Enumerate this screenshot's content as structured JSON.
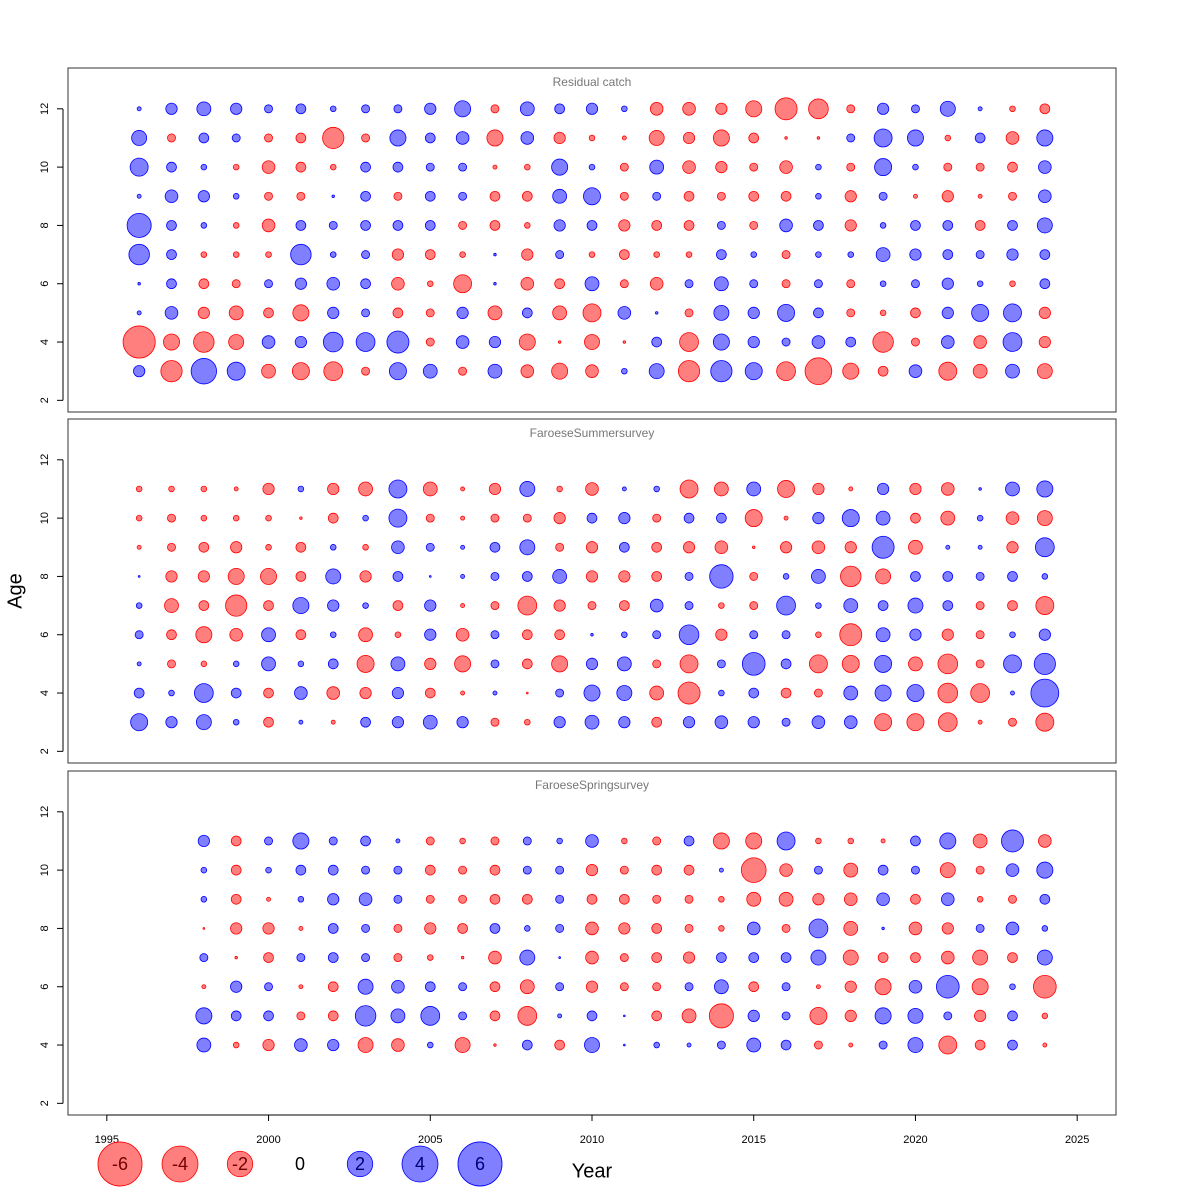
{
  "chart_data": [
    {
      "type": "bubble",
      "title": "Residual catch",
      "x": [
        1996,
        1997,
        1998,
        1999,
        2000,
        2001,
        2002,
        2003,
        2004,
        2005,
        2006,
        2007,
        2008,
        2009,
        2010,
        2011,
        2012,
        2013,
        2014,
        2015,
        2016,
        2017,
        2018,
        2019,
        2020,
        2021,
        2022,
        2023,
        2024
      ],
      "ages": [
        12,
        11,
        10,
        9,
        8,
        7,
        6,
        5,
        4,
        3
      ],
      "values": [
        [
          0.05,
          0.4,
          0.6,
          0.4,
          0.2,
          0.3,
          0.1,
          0.2,
          0.2,
          0.4,
          0.8,
          -0.2,
          0.6,
          0.3,
          0.4,
          0.1,
          -0.5,
          -0.5,
          -0.4,
          -0.8,
          -1.5,
          -1.2,
          -0.2,
          0.4,
          0.2,
          0.7,
          0.05,
          -0.1,
          -0.3
        ],
        [
          0.7,
          -0.2,
          0.3,
          0.2,
          -0.2,
          -0.3,
          -1.4,
          -0.2,
          0.8,
          0.3,
          0.5,
          -0.8,
          0.5,
          -0.4,
          -0.1,
          -0.05,
          -0.7,
          -0.4,
          -0.8,
          -0.3,
          -0.02,
          -0.02,
          0.2,
          1.0,
          0.8,
          -0.1,
          0.3,
          -0.5,
          0.8
        ],
        [
          1.0,
          0.3,
          0.1,
          -0.1,
          -0.5,
          -0.3,
          -0.1,
          0.3,
          0.3,
          0.2,
          0.2,
          -0.05,
          -0.1,
          0.8,
          0.1,
          -0.2,
          0.6,
          -0.5,
          -0.4,
          -0.2,
          -0.5,
          0.1,
          -0.2,
          0.9,
          0.1,
          -0.2,
          -0.2,
          -0.3,
          0.5
        ],
        [
          0.05,
          0.5,
          0.4,
          0.1,
          -0.2,
          -0.2,
          0.02,
          0.3,
          -0.2,
          0.3,
          0.2,
          -0.3,
          -0.3,
          0.6,
          0.9,
          -0.2,
          0.2,
          -0.3,
          -0.2,
          -0.3,
          -0.3,
          0.1,
          -0.4,
          0.2,
          -0.05,
          -0.4,
          -0.05,
          -0.2,
          0.5
        ],
        [
          1.8,
          0.3,
          0.1,
          -0.1,
          -0.5,
          0.3,
          0.2,
          0.3,
          0.3,
          0.3,
          -0.2,
          -0.3,
          -0.1,
          0.4,
          0.3,
          -0.4,
          -0.3,
          -0.3,
          0.2,
          -0.2,
          0.5,
          0.3,
          -0.4,
          0.1,
          0.3,
          0.3,
          -0.3,
          0.3,
          0.7
        ],
        [
          1.3,
          0.3,
          -0.1,
          -0.1,
          -0.1,
          1.3,
          0.1,
          0.2,
          -0.4,
          -0.3,
          -0.1,
          0.02,
          -0.4,
          0.2,
          -0.1,
          -0.3,
          -0.1,
          -0.1,
          0.3,
          0.1,
          -0.2,
          0.1,
          0.1,
          0.6,
          0.4,
          0.3,
          0.2,
          0.4,
          0.3
        ],
        [
          0.02,
          0.3,
          -0.3,
          -0.2,
          0.2,
          0.4,
          0.5,
          0.3,
          -0.5,
          -0.1,
          -1.0,
          0.02,
          -0.5,
          -0.3,
          0.6,
          -0.2,
          -0.5,
          0.2,
          0.6,
          0.2,
          -0.2,
          0.2,
          -0.2,
          0.1,
          0.2,
          0.4,
          0.1,
          -0.1,
          0.3
        ],
        [
          0.05,
          0.5,
          -0.4,
          -0.6,
          -0.3,
          -0.8,
          0.4,
          0.2,
          -0.3,
          -0.2,
          0.4,
          -0.6,
          0.3,
          -0.6,
          -1.0,
          0.5,
          0.02,
          -0.2,
          0.7,
          0.4,
          0.9,
          0.3,
          -0.2,
          -0.1,
          -0.3,
          0.4,
          0.9,
          1.0,
          -0.4
        ],
        [
          -3.2,
          -0.8,
          -1.3,
          -0.7,
          0.5,
          0.4,
          1.2,
          1.1,
          1.5,
          -0.2,
          0.5,
          0.4,
          -0.8,
          -0.02,
          -0.7,
          -0.02,
          0.3,
          -1.1,
          0.8,
          0.4,
          0.2,
          0.5,
          0.3,
          -1.3,
          -0.2,
          0.5,
          -0.5,
          1.1,
          -0.4
        ],
        [
          0.4,
          -1.4,
          2.0,
          1.0,
          -0.6,
          -0.9,
          -1.1,
          -0.2,
          0.9,
          0.6,
          -0.2,
          0.6,
          -0.5,
          -0.8,
          -0.5,
          0.1,
          0.7,
          -1.4,
          1.4,
          0.9,
          -1.1,
          -2.2,
          -0.8,
          -0.3,
          0.5,
          -1.0,
          -0.6,
          0.6,
          -0.7
        ]
      ],
      "positive_color": "#0000ff",
      "negative_color": "#ff0000",
      "xlim": [
        1993.8,
        2026.2
      ],
      "ylim": [
        1.6,
        13.4
      ],
      "yticks": [
        2,
        4,
        6,
        8,
        10,
        12
      ]
    },
    {
      "type": "bubble",
      "title": "FaroeseSummersurvey",
      "y_label": "Age",
      "x": [
        1996,
        1997,
        1998,
        1999,
        2000,
        2001,
        2002,
        2003,
        2004,
        2005,
        2006,
        2007,
        2008,
        2009,
        2010,
        2011,
        2012,
        2013,
        2014,
        2015,
        2016,
        2017,
        2018,
        2019,
        2020,
        2021,
        2022,
        2023,
        2024
      ],
      "ages": [
        11,
        10,
        9,
        8,
        7,
        6,
        5,
        4,
        3
      ],
      "values": [
        [
          -0.1,
          -0.1,
          -0.1,
          -0.05,
          -0.4,
          0.1,
          -0.4,
          -0.6,
          1.0,
          -0.6,
          -0.05,
          -0.4,
          0.7,
          -0.1,
          -0.5,
          0.05,
          0.1,
          -1.0,
          -0.6,
          0.6,
          -0.9,
          -0.4,
          -0.05,
          0.4,
          -0.4,
          -0.5,
          0.02,
          0.6,
          0.8
        ],
        [
          -0.1,
          -0.2,
          -0.1,
          -0.1,
          -0.1,
          -0.02,
          -0.3,
          0.1,
          1.0,
          -0.2,
          -0.05,
          -0.2,
          -0.2,
          -0.4,
          0.3,
          0.4,
          -0.2,
          0.3,
          0.3,
          -0.9,
          -0.05,
          0.4,
          0.9,
          0.6,
          -0.3,
          -0.6,
          0.1,
          -0.5,
          -0.7
        ],
        [
          -0.05,
          -0.2,
          -0.3,
          -0.4,
          -0.1,
          -0.3,
          0.1,
          -0.1,
          0.5,
          0.2,
          0.05,
          0.3,
          0.7,
          -0.2,
          -0.4,
          0.3,
          -0.3,
          -0.4,
          -0.5,
          -0.02,
          -0.4,
          -0.5,
          -0.4,
          1.5,
          -0.6,
          0.05,
          0.05,
          -0.4,
          1.1
        ],
        [
          0.01,
          -0.4,
          -0.4,
          -0.8,
          -0.8,
          -0.3,
          0.7,
          -0.4,
          0.3,
          0.01,
          0.05,
          0.2,
          0.3,
          0.6,
          -0.4,
          -0.4,
          -0.3,
          0.2,
          1.7,
          -0.2,
          0.1,
          0.6,
          -1.3,
          -0.7,
          0.3,
          0.3,
          0.2,
          0.3,
          0.1
        ],
        [
          0.1,
          -0.6,
          -0.3,
          -1.4,
          -0.3,
          0.8,
          0.4,
          0.1,
          -0.3,
          0.4,
          -0.05,
          -0.2,
          -1.1,
          -0.4,
          -0.2,
          -0.3,
          0.5,
          0.2,
          -0.1,
          -0.2,
          1.1,
          0.1,
          0.6,
          0.3,
          0.7,
          0.3,
          -0.2,
          -0.3,
          -1.0
        ],
        [
          0.2,
          -0.3,
          -0.8,
          -0.5,
          0.6,
          -0.3,
          0.1,
          -0.6,
          -0.1,
          0.4,
          -0.5,
          0.2,
          -0.3,
          -0.3,
          0.02,
          0.1,
          0.2,
          1.2,
          -0.4,
          0.2,
          0.2,
          -0.1,
          -1.5,
          0.6,
          0.4,
          -0.4,
          -0.2,
          0.1,
          0.4
        ],
        [
          0.05,
          -0.2,
          -0.1,
          0.1,
          0.6,
          0.1,
          0.3,
          -0.9,
          0.6,
          -0.4,
          -0.8,
          0.2,
          -0.3,
          -0.8,
          0.4,
          0.6,
          -0.2,
          -1.0,
          0.2,
          1.6,
          0.3,
          -1.0,
          -0.9,
          0.9,
          -0.6,
          -1.2,
          -0.2,
          1.0,
          1.4
        ],
        [
          0.3,
          0.1,
          1.1,
          0.3,
          -0.3,
          0.5,
          -0.5,
          -0.4,
          0.4,
          -0.3,
          -0.05,
          0.05,
          -0.01,
          0.2,
          0.8,
          0.7,
          -0.6,
          -1.5,
          0.1,
          0.3,
          -0.3,
          -0.2,
          0.6,
          0.8,
          0.9,
          -1.2,
          -1.1,
          0.05,
          2.4
        ],
        [
          0.9,
          0.4,
          0.7,
          0.1,
          -0.3,
          0.05,
          -0.05,
          0.3,
          0.4,
          0.6,
          0.4,
          -0.2,
          -0.1,
          0.4,
          0.6,
          0.4,
          -0.3,
          0.4,
          0.5,
          0.4,
          0.2,
          0.5,
          0.5,
          -0.9,
          -0.9,
          -1.1,
          -0.05,
          -0.2,
          -1.0
        ]
      ],
      "positive_color": "#0000ff",
      "negative_color": "#ff0000",
      "xlim": [
        1993.8,
        2026.2
      ],
      "ylim": [
        1.6,
        13.4
      ],
      "yticks": [
        2,
        4,
        6,
        8,
        10,
        12
      ]
    },
    {
      "type": "bubble",
      "title": "FaroeseSpringsurvey",
      "x_label": "Year",
      "x": [
        1998,
        1999,
        2000,
        2001,
        2002,
        2003,
        2004,
        2005,
        2006,
        2007,
        2008,
        2009,
        2010,
        2011,
        2012,
        2013,
        2014,
        2015,
        2016,
        2017,
        2018,
        2019,
        2020,
        2021,
        2022,
        2023,
        2024
      ],
      "ages": [
        11,
        10,
        9,
        8,
        7,
        6,
        5,
        4
      ],
      "values": [
        [
          0.4,
          -0.3,
          0.2,
          0.8,
          0.2,
          0.3,
          0.05,
          -0.2,
          -0.1,
          -0.2,
          0.2,
          0.1,
          0.5,
          -0.1,
          -0.2,
          0.3,
          -0.8,
          -0.8,
          1.0,
          -0.1,
          -0.1,
          -0.05,
          0.3,
          0.8,
          -0.6,
          1.5,
          -0.5
        ],
        [
          0.1,
          -0.3,
          0.1,
          0.3,
          0.3,
          0.2,
          0.2,
          -0.3,
          -0.2,
          -0.3,
          0.2,
          0.2,
          -0.4,
          -0.2,
          -0.3,
          -0.3,
          0.05,
          -1.9,
          -0.5,
          0.2,
          -0.6,
          0.3,
          0.2,
          -0.7,
          -0.2,
          0.5,
          0.8
        ],
        [
          0.1,
          -0.3,
          -0.05,
          0.1,
          0.4,
          0.5,
          0.2,
          -0.2,
          -0.2,
          -0.3,
          -0.3,
          0.2,
          -0.3,
          -0.3,
          -0.2,
          -0.2,
          -0.1,
          -0.6,
          -0.6,
          -0.4,
          -0.5,
          0.5,
          -0.3,
          0.5,
          -0.1,
          -0.2,
          0.3
        ],
        [
          -0.01,
          -0.4,
          -0.4,
          -0.05,
          0.3,
          0.2,
          -0.2,
          -0.4,
          -0.3,
          0.3,
          0.1,
          0.2,
          -0.5,
          -0.4,
          -0.3,
          -0.2,
          -0.1,
          0.5,
          -0.2,
          1.1,
          -0.6,
          0.02,
          -0.5,
          -0.4,
          0.2,
          0.5,
          0.1
        ],
        [
          0.2,
          -0.02,
          -0.3,
          0.2,
          0.3,
          0.2,
          -0.2,
          -0.1,
          -0.02,
          -0.5,
          0.7,
          0.01,
          -0.5,
          -0.2,
          -0.3,
          -0.4,
          0.3,
          0.3,
          0.3,
          0.7,
          -0.7,
          -0.3,
          -0.3,
          -0.5,
          -0.7,
          -0.3,
          0.7
        ],
        [
          -0.05,
          0.4,
          0.2,
          -0.05,
          -0.3,
          0.7,
          0.5,
          0.3,
          0.2,
          -0.3,
          -0.6,
          0.2,
          -0.4,
          -0.2,
          -0.2,
          0.2,
          0.6,
          -0.3,
          0.2,
          -0.05,
          -0.4,
          -0.8,
          0.5,
          1.6,
          -0.8,
          0.1,
          -1.6
        ],
        [
          0.8,
          0.3,
          0.3,
          -0.2,
          -0.3,
          1.3,
          0.6,
          1.1,
          0.2,
          -0.3,
          -1.1,
          0.05,
          0.3,
          0.01,
          -0.3,
          -0.6,
          -1.8,
          0.4,
          0.2,
          -0.9,
          -0.4,
          0.8,
          0.7,
          0.2,
          -0.4,
          0.3,
          -0.1
        ],
        [
          0.6,
          -0.1,
          -0.4,
          0.5,
          0.4,
          -0.7,
          -0.5,
          0.1,
          -0.7,
          -0.02,
          0.3,
          -0.3,
          0.7,
          0.01,
          0.1,
          0.05,
          0.2,
          0.6,
          0.3,
          -0.2,
          -0.05,
          0.2,
          0.7,
          -1.0,
          -0.3,
          0.3,
          -0.05
        ]
      ],
      "positive_color": "#0000ff",
      "negative_color": "#ff0000",
      "xlim": [
        1993.8,
        2026.2
      ],
      "ylim": [
        1.6,
        13.4
      ],
      "yticks": [
        2,
        4,
        6,
        8,
        10,
        12
      ],
      "xticks": [
        1995,
        2000,
        2005,
        2010,
        2015,
        2020,
        2025
      ],
      "legend_values": [
        -6,
        -4,
        -2,
        0,
        2,
        4,
        6
      ]
    }
  ]
}
